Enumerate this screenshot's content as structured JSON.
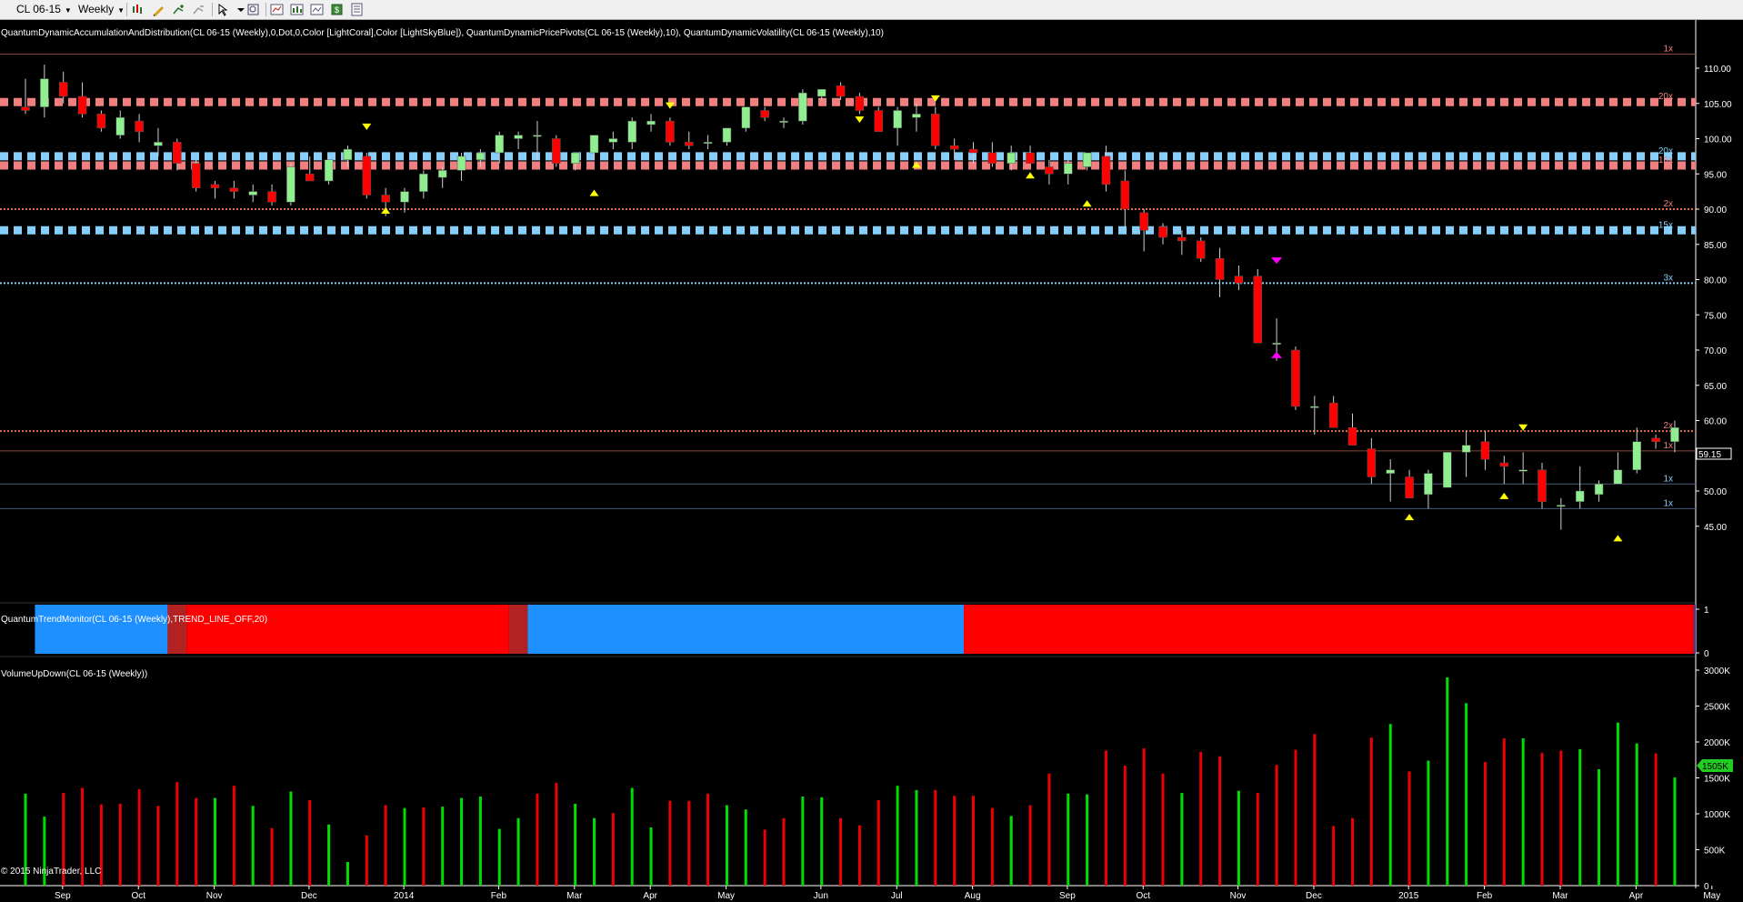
{
  "toolbar": {
    "instrument": "CL 06-15",
    "period": "Weekly",
    "buttons": [
      "bar-style-icon",
      "draw-tool-icon",
      "add-indicator-icon",
      "remove-indicator-icon",
      "pointer-icon",
      "zoom-icon",
      "strategy-icon",
      "chart-properties-icon",
      "analyzer-icon",
      "export-icon",
      "data-box-icon"
    ]
  },
  "panels": {
    "price_title": "QuantumDynamicAccumulationAndDistribution(CL 06-15 (Weekly),0,Dot,0,Color [LightCoral],Color [LightSkyBlue]), QuantumDynamicPricePivots(CL 06-15 (Weekly),10), QuantumDynamicVolatility(CL 06-15 (Weekly),10)",
    "trend_title": "QuantumTrendMonitor(CL 06-15 (Weekly),TREND_LINE_OFF,20)",
    "volume_title": "VolumeUpDown(CL 06-15 (Weekly))",
    "copyright": "© 2015 NinjaTrader, LLC",
    "current_price_label": "59.15",
    "current_volume_label": "1505K"
  },
  "colors": {
    "up": "#90ee90",
    "down": "#ff0000",
    "volume_up": "#00dd00",
    "volume_down": "#ee0000",
    "light_coral": "#f08080",
    "light_sky_blue": "#87cefa",
    "trend_blue": "#1e90ff",
    "trend_red": "#ff0000",
    "trend_dark_red": "#b22222",
    "pivot_yellow": "#ffff00",
    "pivot_magenta": "#ff00ff"
  },
  "chart_data": [
    {
      "type": "candlestick",
      "panel": "price",
      "ylim": [
        42,
        114
      ],
      "yticks": [
        "45.00",
        "50.00",
        "55.00",
        "60.00",
        "65.00",
        "70.00",
        "75.00",
        "80.00",
        "85.00",
        "90.00",
        "95.00",
        "100.00",
        "105.00",
        "110.00"
      ],
      "ytick_values": [
        45,
        50,
        55,
        60,
        65,
        70,
        75,
        80,
        85,
        90,
        95,
        100,
        105,
        110
      ],
      "xticks": [
        "Sep",
        "Oct",
        "Nov",
        "Dec",
        "2014",
        "Feb",
        "Mar",
        "Apr",
        "May",
        "Jun",
        "Jul",
        "Aug",
        "Sep",
        "Oct",
        "Nov",
        "Dec",
        "2015",
        "Feb",
        "Mar",
        "Apr",
        "May"
      ],
      "xtick_weeks": [
        1,
        5,
        9,
        14,
        19,
        24,
        28,
        32,
        36,
        41,
        45,
        49,
        54,
        58,
        63,
        67,
        72,
        76,
        80,
        84,
        88
      ],
      "candles": [
        [
          104.5,
          108.5,
          103.5,
          104.0
        ],
        [
          104.5,
          110.5,
          103.0,
          108.5
        ],
        [
          108.0,
          109.5,
          105.0,
          106.0
        ],
        [
          106.0,
          108.0,
          103.0,
          103.5
        ],
        [
          103.5,
          104.0,
          101.0,
          101.5
        ],
        [
          100.5,
          104.0,
          100.0,
          103.0
        ],
        [
          102.5,
          103.5,
          99.5,
          101.0
        ],
        [
          99.0,
          101.5,
          97.5,
          99.5
        ],
        [
          99.5,
          100.0,
          95.5,
          96.5
        ],
        [
          96.5,
          97.0,
          92.5,
          93.0
        ],
        [
          93.5,
          94.0,
          91.5,
          93.0
        ],
        [
          93.0,
          94.0,
          91.5,
          92.5
        ],
        [
          92.0,
          93.5,
          91.0,
          92.5
        ],
        [
          92.5,
          93.5,
          90.5,
          91.0
        ],
        [
          91.0,
          96.5,
          90.5,
          96.0
        ],
        [
          95.0,
          97.5,
          94.0,
          94.0
        ],
        [
          94.0,
          97.5,
          93.5,
          97.0
        ],
        [
          97.0,
          99.0,
          96.0,
          98.5
        ],
        [
          97.5,
          98.0,
          91.5,
          92.0
        ],
        [
          92.0,
          93.0,
          89.0,
          91.0
        ],
        [
          91.0,
          93.0,
          89.5,
          92.5
        ],
        [
          92.5,
          95.5,
          91.5,
          95.0
        ],
        [
          94.5,
          96.0,
          93.0,
          95.5
        ],
        [
          95.5,
          98.0,
          94.0,
          97.5
        ],
        [
          97.0,
          98.5,
          96.0,
          98.0
        ],
        [
          98.0,
          101.0,
          96.5,
          100.5
        ],
        [
          100.0,
          101.0,
          98.5,
          100.5
        ],
        [
          100.5,
          102.5,
          97.0,
          100.5
        ],
        [
          100.0,
          100.5,
          96.0,
          96.5
        ],
        [
          96.5,
          98.0,
          95.5,
          98.0
        ],
        [
          98.0,
          100.5,
          97.0,
          100.5
        ],
        [
          99.5,
          101.0,
          98.5,
          100.0
        ],
        [
          99.5,
          103.0,
          98.5,
          102.5
        ],
        [
          102.0,
          103.5,
          101.0,
          102.5
        ],
        [
          102.5,
          103.0,
          99.0,
          99.5
        ],
        [
          99.5,
          101.0,
          98.5,
          99.0
        ],
        [
          99.5,
          100.5,
          98.5,
          99.5
        ],
        [
          99.5,
          101.5,
          99.0,
          101.5
        ],
        [
          101.5,
          104.5,
          101.0,
          104.5
        ],
        [
          104.0,
          104.5,
          102.5,
          103.0
        ],
        [
          102.5,
          103.0,
          101.5,
          102.5
        ],
        [
          102.5,
          107.0,
          102.0,
          106.5
        ],
        [
          106.0,
          107.0,
          105.5,
          107.0
        ],
        [
          107.5,
          108.0,
          105.5,
          106.0
        ],
        [
          106.0,
          106.5,
          103.5,
          104.0
        ],
        [
          104.0,
          104.5,
          101.0,
          101.0
        ],
        [
          101.5,
          104.5,
          99.0,
          104.0
        ],
        [
          103.0,
          105.0,
          101.0,
          103.5
        ],
        [
          103.5,
          104.5,
          98.5,
          99.0
        ],
        [
          99.0,
          100.0,
          97.0,
          98.5
        ],
        [
          98.5,
          99.5,
          96.5,
          98.0
        ],
        [
          98.0,
          99.5,
          96.0,
          96.5
        ],
        [
          96.5,
          99.0,
          95.5,
          98.0
        ],
        [
          98.0,
          99.0,
          96.5,
          96.5
        ],
        [
          96.0,
          97.0,
          93.5,
          95.0
        ],
        [
          95.0,
          97.0,
          93.5,
          96.5
        ],
        [
          96.0,
          98.0,
          95.5,
          98.0
        ],
        [
          97.5,
          99.0,
          92.5,
          93.5
        ],
        [
          94.0,
          95.5,
          87.5,
          90.0
        ],
        [
          89.5,
          90.0,
          84.0,
          87.0
        ],
        [
          87.5,
          88.0,
          85.0,
          86.0
        ],
        [
          86.0,
          87.0,
          83.5,
          85.5
        ],
        [
          85.5,
          86.0,
          82.5,
          83.0
        ],
        [
          83.0,
          84.5,
          77.5,
          80.0
        ],
        [
          80.5,
          82.0,
          78.5,
          79.5
        ],
        [
          80.5,
          81.5,
          71.0,
          71.0
        ],
        [
          71.0,
          74.5,
          68.5,
          71.0
        ],
        [
          70.0,
          70.5,
          61.5,
          62.0
        ],
        [
          62.0,
          63.5,
          58.0,
          62.0
        ],
        [
          62.5,
          63.5,
          59.5,
          59.0
        ],
        [
          59.0,
          61.0,
          56.5,
          56.5
        ],
        [
          56.0,
          57.5,
          51.0,
          52.0
        ],
        [
          52.5,
          54.5,
          48.5,
          53.0
        ],
        [
          52.0,
          53.0,
          49.0,
          49.0
        ],
        [
          49.5,
          53.0,
          47.5,
          52.5
        ],
        [
          50.5,
          55.5,
          50.5,
          55.5
        ],
        [
          55.5,
          58.5,
          52.0,
          56.5
        ],
        [
          57.0,
          58.5,
          53.0,
          54.5
        ],
        [
          54.0,
          55.0,
          51.0,
          53.5
        ],
        [
          53.0,
          55.5,
          51.0,
          53.0
        ],
        [
          53.0,
          54.0,
          47.5,
          48.5
        ],
        [
          48.0,
          49.0,
          44.5,
          48.0
        ],
        [
          48.5,
          53.5,
          47.5,
          50.0
        ],
        [
          49.5,
          51.5,
          48.5,
          51.0
        ],
        [
          51.0,
          55.5,
          51.0,
          53.0
        ],
        [
          53.0,
          59.0,
          52.5,
          57.0
        ],
        [
          57.5,
          58.0,
          56.0,
          57.0
        ],
        [
          57.0,
          60.0,
          55.5,
          59.0
        ]
      ],
      "levels": [
        {
          "name": "20x",
          "value": 105.2,
          "style": "coral-block"
        },
        {
          "name": "20x",
          "value": 97.5,
          "style": "blue-block"
        },
        {
          "name": "16x",
          "value": 96.2,
          "style": "coral-block"
        },
        {
          "name": "15x",
          "value": 87.0,
          "style": "blue-block"
        },
        {
          "name": "2x",
          "value": 90.0,
          "style": "coral-dot"
        },
        {
          "name": "3x",
          "value": 79.5,
          "style": "blue-dot"
        },
        {
          "name": "1x",
          "value": 112.0,
          "style": "coral-line"
        },
        {
          "name": "2x",
          "value": 58.5,
          "style": "coral-dot"
        },
        {
          "name": "1x",
          "value": 55.7,
          "style": "coral-line"
        },
        {
          "name": "1x",
          "value": 51.0,
          "style": "blue-line"
        },
        {
          "name": "1x",
          "value": 47.5,
          "style": "blue-line"
        }
      ],
      "pivots_up": [
        [
          19,
          90
        ],
        [
          30,
          92.5
        ],
        [
          47,
          96.5
        ],
        [
          53,
          95
        ],
        [
          56,
          91
        ],
        [
          73,
          46.5
        ],
        [
          78,
          49.5
        ],
        [
          84,
          43.5
        ]
      ],
      "pivots_down": [
        [
          18,
          101.5
        ],
        [
          34,
          104.5
        ],
        [
          48,
          105.5
        ],
        [
          44,
          102.5
        ],
        [
          79,
          58.8
        ]
      ],
      "pivots_magenta": [
        [
          66,
          82.5,
          "down"
        ],
        [
          66,
          69.5,
          "up"
        ]
      ]
    },
    {
      "type": "heatmap",
      "panel": "trend",
      "ylim": [
        0,
        1
      ],
      "ytick_labels": [
        "1",
        "0"
      ],
      "segments": [
        {
          "from_week": 0,
          "to_week": 1,
          "color": "black"
        },
        {
          "from_week": 1,
          "to_week": 8,
          "color": "blue"
        },
        {
          "from_week": 8,
          "to_week": 9,
          "color": "darkred"
        },
        {
          "from_week": 9,
          "to_week": 26,
          "color": "red"
        },
        {
          "from_week": 26,
          "to_week": 27,
          "color": "darkred"
        },
        {
          "from_week": 27,
          "to_week": 50,
          "color": "blue"
        },
        {
          "from_week": 50,
          "to_week": 88.5,
          "color": "red"
        },
        {
          "from_week": 88.5,
          "to_week": 89.5,
          "color": "purple"
        }
      ]
    },
    {
      "type": "bar",
      "panel": "volume",
      "ylim": [
        0,
        3000
      ],
      "yticks": [
        "0",
        "500K",
        "1000K",
        "1500K",
        "2000K",
        "2500K",
        "3000K"
      ],
      "ytick_values": [
        0,
        500,
        1000,
        1500,
        2000,
        2500,
        3000
      ],
      "values": [
        [
          1280,
          1
        ],
        [
          960,
          1
        ],
        [
          1290,
          0
        ],
        [
          1360,
          0
        ],
        [
          1130,
          0
        ],
        [
          1140,
          0
        ],
        [
          1340,
          0
        ],
        [
          1110,
          0
        ],
        [
          1440,
          0
        ],
        [
          1220,
          0
        ],
        [
          1220,
          1
        ],
        [
          1390,
          0
        ],
        [
          1110,
          1
        ],
        [
          800,
          0
        ],
        [
          1310,
          1
        ],
        [
          1190,
          0
        ],
        [
          850,
          1
        ],
        [
          330,
          1
        ],
        [
          700,
          0
        ],
        [
          1120,
          0
        ],
        [
          1080,
          1
        ],
        [
          1090,
          0
        ],
        [
          1100,
          1
        ],
        [
          1220,
          1
        ],
        [
          1240,
          1
        ],
        [
          790,
          1
        ],
        [
          940,
          1
        ],
        [
          1280,
          0
        ],
        [
          1430,
          0
        ],
        [
          1140,
          1
        ],
        [
          940,
          1
        ],
        [
          1010,
          0
        ],
        [
          1360,
          1
        ],
        [
          810,
          1
        ],
        [
          1180,
          0
        ],
        [
          1180,
          0
        ],
        [
          1280,
          0
        ],
        [
          1120,
          1
        ],
        [
          1060,
          1
        ],
        [
          780,
          0
        ],
        [
          940,
          0
        ],
        [
          1240,
          1
        ],
        [
          1230,
          1
        ],
        [
          940,
          0
        ],
        [
          840,
          0
        ],
        [
          1190,
          0
        ],
        [
          1390,
          1
        ],
        [
          1330,
          1
        ],
        [
          1330,
          0
        ],
        [
          1250,
          0
        ],
        [
          1250,
          0
        ],
        [
          1080,
          0
        ],
        [
          970,
          1
        ],
        [
          1120,
          0
        ],
        [
          1560,
          0
        ],
        [
          1280,
          1
        ],
        [
          1270,
          1
        ],
        [
          1880,
          0
        ],
        [
          1670,
          0
        ],
        [
          1910,
          0
        ],
        [
          1560,
          0
        ],
        [
          1290,
          1
        ],
        [
          1860,
          0
        ],
        [
          1800,
          0
        ],
        [
          1320,
          1
        ],
        [
          1290,
          0
        ],
        [
          1680,
          0
        ],
        [
          1890,
          0
        ],
        [
          2110,
          0
        ],
        [
          830,
          0
        ],
        [
          940,
          0
        ],
        [
          2060,
          0
        ],
        [
          2250,
          1
        ],
        [
          1590,
          0
        ],
        [
          1740,
          1
        ],
        [
          2900,
          1
        ],
        [
          2540,
          1
        ],
        [
          1720,
          0
        ],
        [
          2050,
          0
        ],
        [
          2050,
          1
        ],
        [
          1850,
          0
        ],
        [
          1880,
          0
        ],
        [
          1900,
          1
        ],
        [
          1620,
          1
        ],
        [
          2270,
          1
        ],
        [
          1980,
          1
        ],
        [
          1840,
          0
        ],
        [
          1505,
          1
        ]
      ]
    }
  ]
}
